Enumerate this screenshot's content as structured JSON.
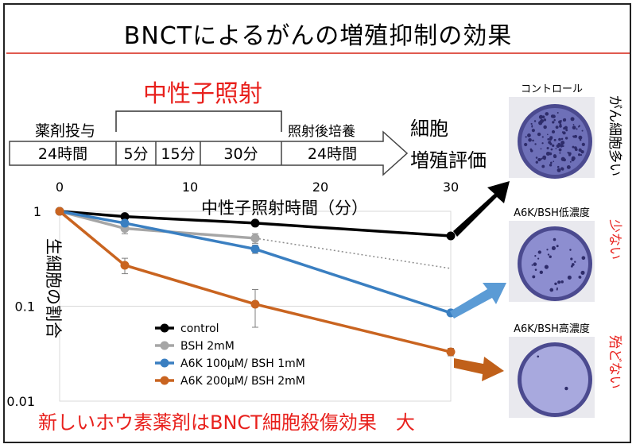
{
  "title": "BNCTによるがんの増殖抑制の効果",
  "protocol": {
    "neutron_label": "中性子照射",
    "drug_label": "薬剤投与",
    "drug_time": "24時間",
    "irr_times": [
      "5分",
      "15分",
      "30分"
    ],
    "post_label": "照射後培養",
    "post_time": "24時間",
    "eval_line1": "細胞",
    "eval_line2": "増殖評価"
  },
  "photos": [
    {
      "label": "コントロール",
      "result": "がん細胞多い",
      "result_color": "#000000",
      "plate_tone": "dense"
    },
    {
      "label": "A6K/BSH低濃度",
      "result": "少ない",
      "result_color": "#e8201c",
      "plate_tone": "medium"
    },
    {
      "label": "A6K/BSH高濃度",
      "result": "殆どない",
      "result_color": "#e8201c",
      "plate_tone": "clear"
    }
  ],
  "chart_data": {
    "type": "line",
    "xlabel": "中性子照射時間（分）",
    "ylabel": "生細胞の割合",
    "xlim": [
      0,
      30
    ],
    "x_ticks": [
      "0",
      "10",
      "20",
      "30"
    ],
    "y_scale": "log",
    "ylim": [
      0.01,
      1
    ],
    "y_ticks": [
      "1",
      "0.1",
      "0.01"
    ],
    "series": [
      {
        "name": "control",
        "color": "#000000",
        "x": [
          0,
          5,
          15,
          30
        ],
        "y": [
          1.0,
          0.88,
          0.75,
          0.55
        ]
      },
      {
        "name": "BSH 2mM",
        "color": "#a6a6a6",
        "x": [
          0,
          5,
          15
        ],
        "y": [
          1.0,
          0.66,
          0.52
        ],
        "err": [
          0,
          0.08,
          0.06
        ]
      },
      {
        "name": "A6K 100μM/ BSH 1mM",
        "color": "#3a7fc1",
        "x": [
          0,
          5,
          15,
          30
        ],
        "y": [
          1.0,
          0.75,
          0.4,
          0.085
        ],
        "err": [
          0,
          0.05,
          0.04,
          0.005
        ]
      },
      {
        "name": "A6K 200μM/ BSH 2mM",
        "color": "#c96420",
        "x": [
          0,
          5,
          15,
          30
        ],
        "y": [
          1.0,
          0.27,
          0.105,
          0.033
        ],
        "err": [
          0,
          0.05,
          0.045,
          0.003
        ]
      }
    ],
    "trendline": {
      "series": "BSH 2mM",
      "x": [
        15,
        30
      ],
      "y": [
        0.52,
        0.25
      ],
      "style": "dotted"
    },
    "legend_position": "bottom-left inside plot"
  },
  "footer": {
    "text": "新しいホウ素薬剤はBNCT細胞殺傷効果　大",
    "color": "#e8201c"
  }
}
